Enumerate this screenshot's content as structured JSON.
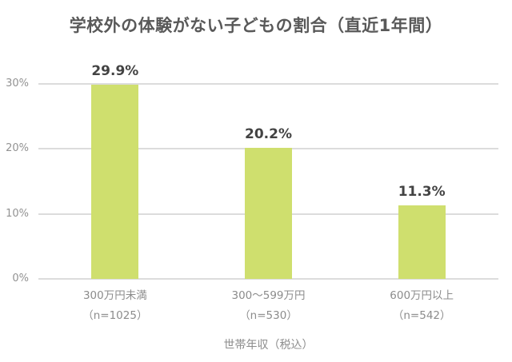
{
  "title": "学校外の体験がない子どもの割合（直近1年間）",
  "chart_data": {
    "type": "bar",
    "title": "学校外の体験がない子どもの割合（直近1年間）",
    "categories": [
      "300万円未満",
      "300〜599万円",
      "600万円以上"
    ],
    "category_sublabels": [
      "（n=1025）",
      "（n=530）",
      "（n=542）"
    ],
    "values": [
      29.9,
      20.2,
      11.3
    ],
    "value_labels": [
      "29.9%",
      "20.2%",
      "11.3%"
    ],
    "xlabel": "世帯年収（税込）",
    "ylabel": "",
    "ylim": [
      0,
      30
    ],
    "ytick_values": [
      0,
      10,
      20,
      30
    ],
    "ytick_labels": [
      "0%",
      "10%",
      "20%",
      "30%"
    ],
    "grid": "horizontal",
    "legend": "none",
    "colors": {
      "bar": "#cfdf6e",
      "title_text": "#595959",
      "value_label_text": "#434343",
      "axis_text": "#8c8c8c",
      "tick_text": "#929292",
      "gridline": "#dcdcdc",
      "background": "#ffffff"
    }
  }
}
